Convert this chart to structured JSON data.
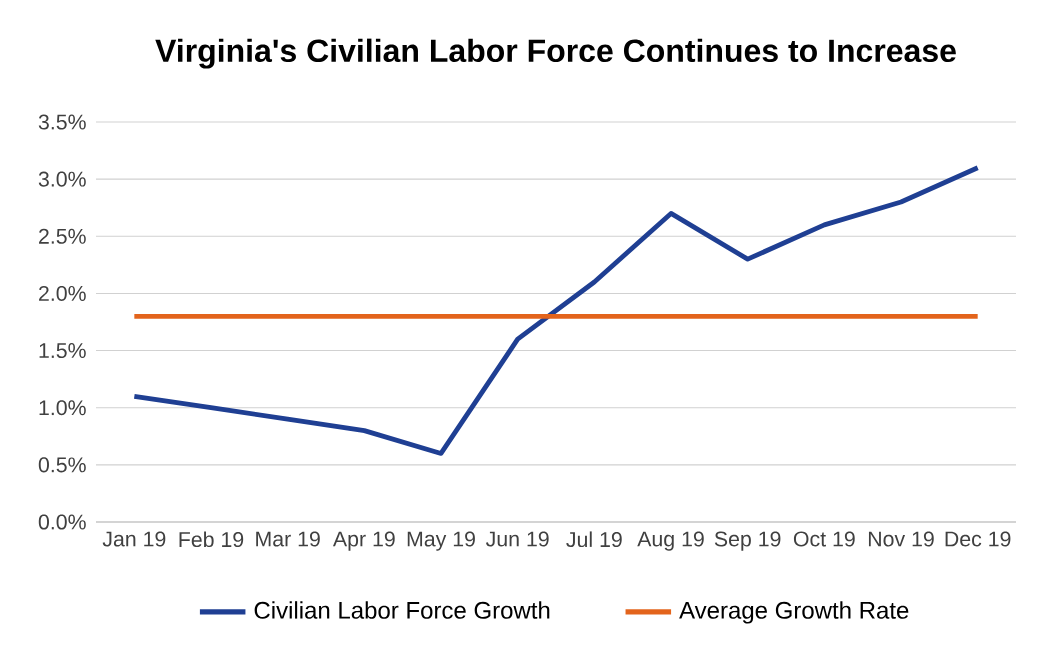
{
  "chart_data": {
    "type": "line",
    "title": "Virginia's Civilian Labor Force Continues to Increase",
    "categories": [
      "Jan 19",
      "Feb 19",
      "Mar 19",
      "Apr 19",
      "May 19",
      "Jun 19",
      "Jul 19",
      "Aug 19",
      "Sep 19",
      "Oct 19",
      "Nov 19",
      "Dec 19"
    ],
    "series": [
      {
        "name": "Civilian Labor Force Growth",
        "color": "#1f3f93",
        "values": [
          1.1,
          1.0,
          0.9,
          0.8,
          0.6,
          1.6,
          2.1,
          2.7,
          2.3,
          2.6,
          2.8,
          3.1
        ]
      },
      {
        "name": "Average Growth Rate",
        "color": "#e3641c",
        "values": [
          1.8,
          1.8,
          1.8,
          1.8,
          1.8,
          1.8,
          1.8,
          1.8,
          1.8,
          1.8,
          1.8,
          1.8
        ]
      }
    ],
    "ylim": [
      0,
      3.5
    ],
    "yticks": [
      {
        "value": 0,
        "label": "0.0%"
      },
      {
        "value": 0.5,
        "label": "0.5%"
      },
      {
        "value": 1,
        "label": "1.0%"
      },
      {
        "value": 1.5,
        "label": "1.5%"
      },
      {
        "value": 2,
        "label": "2.0%"
      },
      {
        "value": 2.5,
        "label": "2.5%"
      },
      {
        "value": 3,
        "label": "3.0%"
      },
      {
        "value": 3.5,
        "label": "3.5%"
      }
    ],
    "grid": "y",
    "legend": "bottom",
    "marker": "none",
    "line_style": "solid"
  }
}
